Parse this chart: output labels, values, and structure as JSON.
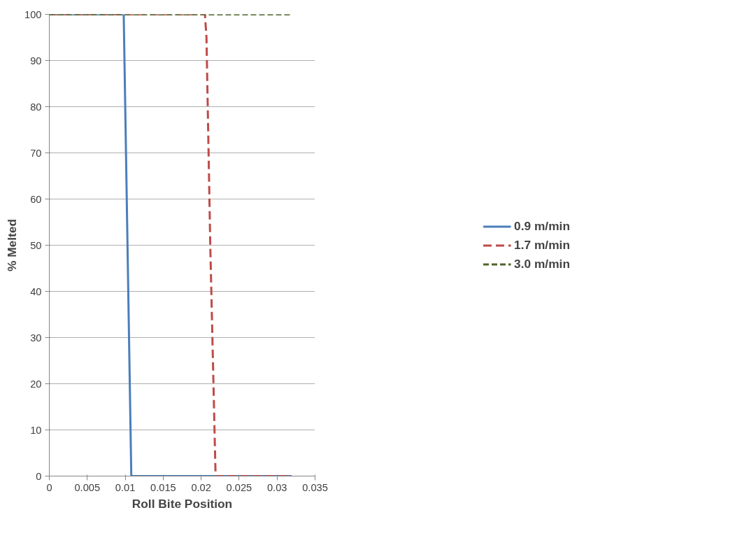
{
  "chart_data": {
    "type": "line",
    "xlabel": "Roll Bite Position",
    "ylabel": "% Melted",
    "xlim": [
      0,
      0.035
    ],
    "xticks": [
      0,
      0.005,
      0.01,
      0.015,
      0.02,
      0.025,
      0.03,
      0.035
    ],
    "ylim": [
      0,
      100
    ],
    "yticks": [
      0,
      10,
      20,
      30,
      40,
      50,
      60,
      70,
      80,
      90,
      100
    ],
    "grid": "y",
    "legend": "right",
    "marker": "none",
    "series": [
      {
        "name": "0.9 m/min",
        "color": "#4a7ebb",
        "line_style": "solid",
        "x": [
          0,
          0.0098,
          0.0108,
          0.0319
        ],
        "values": [
          100,
          100,
          0,
          0
        ]
      },
      {
        "name": "1.7 m/min",
        "color": "#be4b48",
        "line_style": "dashed",
        "x": [
          0,
          0.0205,
          0.0207,
          0.0212,
          0.0219,
          0.0319
        ],
        "values": [
          100,
          100,
          95,
          50,
          0,
          0
        ]
      },
      {
        "name": "3.0 m/min",
        "color": "#4f6228",
        "line_style": "dashed",
        "x": [
          0,
          0.0319
        ],
        "values": [
          100,
          100
        ]
      }
    ]
  }
}
